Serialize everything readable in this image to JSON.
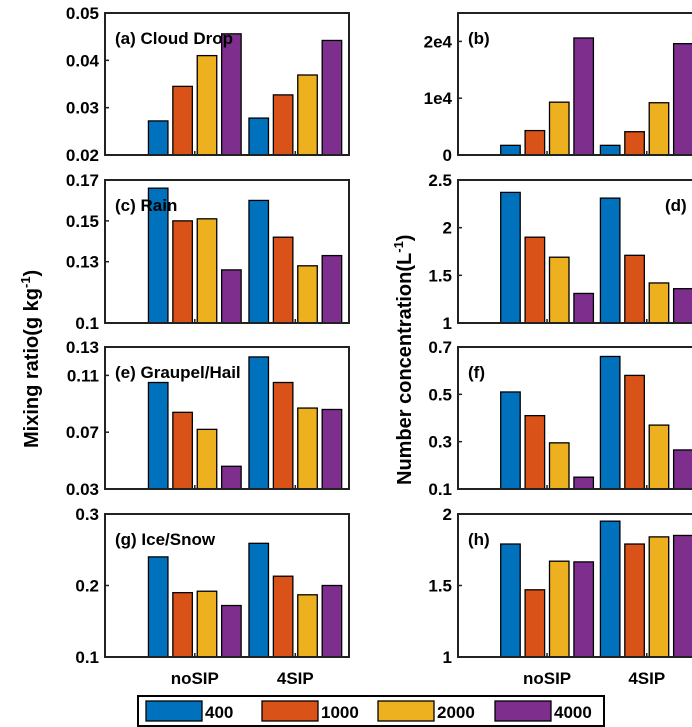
{
  "ylabels": {
    "left": "Mixing ratio(g kg",
    "left_sup": "-1",
    "left_close": ")",
    "right": "Number concentration(L",
    "right_sup": "-1",
    "right_close": ")"
  },
  "legend": [
    "400",
    "1000",
    "2000",
    "4000"
  ],
  "colors": [
    "#0072BD",
    "#D95319",
    "#EDB120",
    "#7E2F8E"
  ],
  "chart_data": [
    {
      "type": "bar",
      "title": "(a) Cloud Drop",
      "categories": [
        "noSIP",
        "4SIP"
      ],
      "ylim": [
        0.02,
        0.05
      ],
      "yticks": [
        "0.02",
        "0.03",
        "0.04",
        "0.05"
      ],
      "ytickvals": [
        0.02,
        0.03,
        0.04,
        0.05
      ],
      "series": [
        {
          "name": "400",
          "values": [
            0.0272,
            0.0278
          ]
        },
        {
          "name": "1000",
          "values": [
            0.0345,
            0.0327
          ]
        },
        {
          "name": "2000",
          "values": [
            0.041,
            0.0369
          ]
        },
        {
          "name": "4000",
          "values": [
            0.0456,
            0.0442
          ]
        }
      ]
    },
    {
      "type": "bar",
      "title": "(b)",
      "categories": [
        "noSIP",
        "4SIP"
      ],
      "ylim": [
        0,
        25000
      ],
      "yticks": [
        "0",
        "1e4",
        "2e4"
      ],
      "ytickvals": [
        0,
        10000,
        20000
      ],
      "series": [
        {
          "name": "400",
          "values": [
            1700,
            1700
          ]
        },
        {
          "name": "1000",
          "values": [
            4300,
            4100
          ]
        },
        {
          "name": "2000",
          "values": [
            9300,
            9200
          ]
        },
        {
          "name": "4000",
          "values": [
            20600,
            19600
          ]
        }
      ]
    },
    {
      "type": "bar",
      "title": "(c) Rain",
      "categories": [
        "noSIP",
        "4SIP"
      ],
      "ylim": [
        0.1,
        0.17
      ],
      "yticks": [
        "0.1",
        "0.13",
        "0.15",
        "0.17"
      ],
      "ytickvals": [
        0.1,
        0.13,
        0.15,
        0.17
      ],
      "series": [
        {
          "name": "400",
          "values": [
            0.166,
            0.16
          ]
        },
        {
          "name": "1000",
          "values": [
            0.15,
            0.142
          ]
        },
        {
          "name": "2000",
          "values": [
            0.151,
            0.128
          ]
        },
        {
          "name": "4000",
          "values": [
            0.126,
            0.133
          ]
        }
      ]
    },
    {
      "type": "bar",
      "title": "(d)",
      "categories": [
        "noSIP",
        "4SIP"
      ],
      "ylim": [
        1,
        2.5
      ],
      "yticks": [
        "1",
        "1.5",
        "2",
        "2.5"
      ],
      "ytickvals": [
        1,
        1.5,
        2,
        2.5
      ],
      "series": [
        {
          "name": "400",
          "values": [
            2.37,
            2.31
          ]
        },
        {
          "name": "1000",
          "values": [
            1.9,
            1.71
          ]
        },
        {
          "name": "2000",
          "values": [
            1.69,
            1.42
          ]
        },
        {
          "name": "4000",
          "values": [
            1.31,
            1.36
          ]
        }
      ]
    },
    {
      "type": "bar",
      "title": "(e) Graupel/Hail",
      "categories": [
        "noSIP",
        "4SIP"
      ],
      "ylim": [
        0.03,
        0.13
      ],
      "yticks": [
        "0.03",
        "0.07",
        "0.11",
        "0.13"
      ],
      "ytickvals": [
        0.03,
        0.07,
        0.11,
        0.13
      ],
      "series": [
        {
          "name": "400",
          "values": [
            0.105,
            0.123
          ]
        },
        {
          "name": "1000",
          "values": [
            0.084,
            0.105
          ]
        },
        {
          "name": "2000",
          "values": [
            0.072,
            0.087
          ]
        },
        {
          "name": "4000",
          "values": [
            0.046,
            0.086
          ]
        }
      ]
    },
    {
      "type": "bar",
      "title": "(f)",
      "categories": [
        "noSIP",
        "4SIP"
      ],
      "ylim": [
        0.1,
        0.7
      ],
      "yticks": [
        "0.1",
        "0.3",
        "0.5",
        "0.7"
      ],
      "ytickvals": [
        0.1,
        0.3,
        0.5,
        0.7
      ],
      "series": [
        {
          "name": "400",
          "values": [
            0.51,
            0.66
          ]
        },
        {
          "name": "1000",
          "values": [
            0.41,
            0.58
          ]
        },
        {
          "name": "2000",
          "values": [
            0.295,
            0.37
          ]
        },
        {
          "name": "4000",
          "values": [
            0.15,
            0.265
          ]
        }
      ]
    },
    {
      "type": "bar",
      "title": "(g) Ice/Snow",
      "categories": [
        "noSIP",
        "4SIP"
      ],
      "ylim": [
        0.1,
        0.3
      ],
      "yticks": [
        "0.1",
        "0.2",
        "0.3"
      ],
      "ytickvals": [
        0.1,
        0.2,
        0.3
      ],
      "series": [
        {
          "name": "400",
          "values": [
            0.24,
            0.259
          ]
        },
        {
          "name": "1000",
          "values": [
            0.19,
            0.213
          ]
        },
        {
          "name": "2000",
          "values": [
            0.192,
            0.187
          ]
        },
        {
          "name": "4000",
          "values": [
            0.172,
            0.2
          ]
        }
      ]
    },
    {
      "type": "bar",
      "title": "(h)",
      "categories": [
        "noSIP",
        "4SIP"
      ],
      "ylim": [
        1,
        2
      ],
      "yticks": [
        "1",
        "1.5",
        "2"
      ],
      "ytickvals": [
        1,
        1.5,
        2
      ],
      "series": [
        {
          "name": "400",
          "values": [
            1.79,
            1.95
          ]
        },
        {
          "name": "1000",
          "values": [
            1.47,
            1.79
          ]
        },
        {
          "name": "2000",
          "values": [
            1.67,
            1.84
          ]
        },
        {
          "name": "4000",
          "values": [
            1.665,
            1.85
          ]
        }
      ]
    }
  ]
}
